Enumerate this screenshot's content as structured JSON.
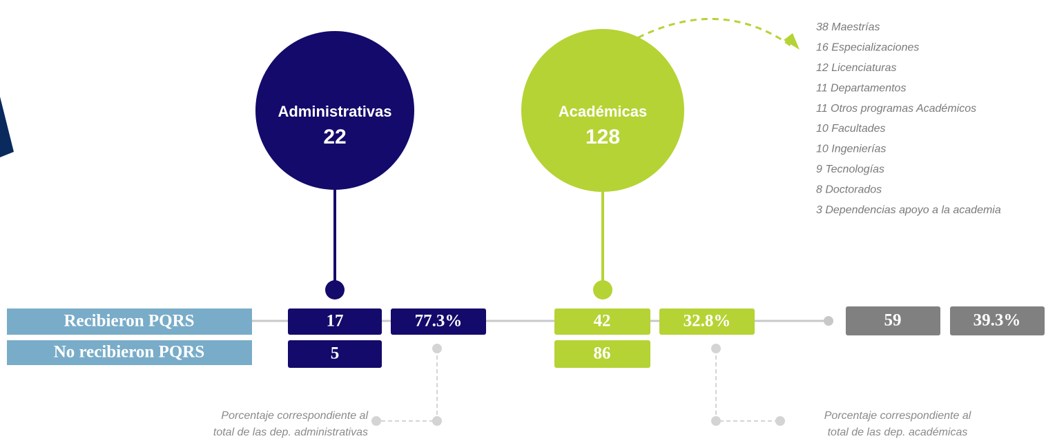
{
  "groups": [
    {
      "name": "Administrativas",
      "total": "22",
      "received": "17",
      "percent": "77.3%",
      "not_received": "5"
    },
    {
      "name": "Académicas",
      "total": "128",
      "received": "42",
      "percent": "32.8%",
      "not_received": "86"
    }
  ],
  "row_labels": [
    "Recibieron PQRS",
    "No recibieron PQRS"
  ],
  "total": {
    "received": "59",
    "percent": "39.3%"
  },
  "academic_breakdown": [
    "38 Maestrías",
    "16 Especializaciones",
    "12 Licenciaturas",
    "11 Departamentos",
    "11 Otros programas Académicos",
    "10 Facultades",
    "10 Ingenierías",
    "9 Tecnologías",
    "8 Doctorados",
    "3 Dependencias apoyo a la academia"
  ],
  "notes": [
    [
      "Porcentaje correspondiente al",
      "total de las dep. administrativas"
    ],
    [
      "Porcentaje correspondiente al",
      "total de las dep. académicas"
    ]
  ]
}
